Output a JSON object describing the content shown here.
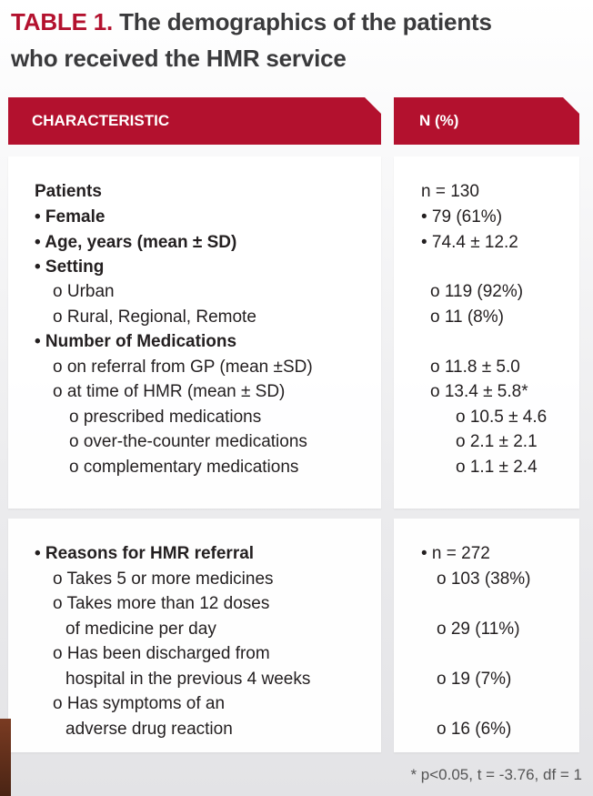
{
  "title": {
    "number": "TABLE 1.",
    "line1": " The demographics of the patients",
    "line2": "who received the HMR service"
  },
  "header": {
    "col1": "CHARACTERISTIC",
    "col2": "N (%)"
  },
  "section1": {
    "left": [
      "Patients",
      "• Female",
      "• Age, years (mean ± SD)",
      "• Setting",
      "o Urban",
      "o Rural, Regional, Remote",
      "• Number of Medications",
      "o on referral from GP (mean ±SD)",
      "o at time of HMR (mean ± SD)",
      "o prescribed medications",
      "o over-the-counter medications",
      "o complementary medications"
    ],
    "right": [
      "n = 130",
      "• 79 (61%)",
      "• 74.4 ± 12.2",
      "o 119 (92%)",
      "o 11 (8%)",
      "o 11.8 ± 5.0",
      "o 13.4 ± 5.8*",
      "o 10.5 ± 4.6",
      "o 2.1 ± 2.1",
      "o 1.1 ± 2.4"
    ]
  },
  "section2": {
    "left": [
      "• Reasons for HMR referral",
      "o Takes 5 or more medicines",
      "o Takes more than 12 doses",
      "of medicine per day",
      "o Has been discharged from",
      "hospital in the previous 4 weeks",
      "o Has symptoms of an",
      "adverse drug reaction"
    ],
    "right": [
      "• n = 272",
      "o 103 (38%)",
      "o 29 (11%)",
      "o 19 (7%)",
      "o 16 (6%)"
    ]
  },
  "footnote": "* p<0.05, t = -3.76, df = 1"
}
